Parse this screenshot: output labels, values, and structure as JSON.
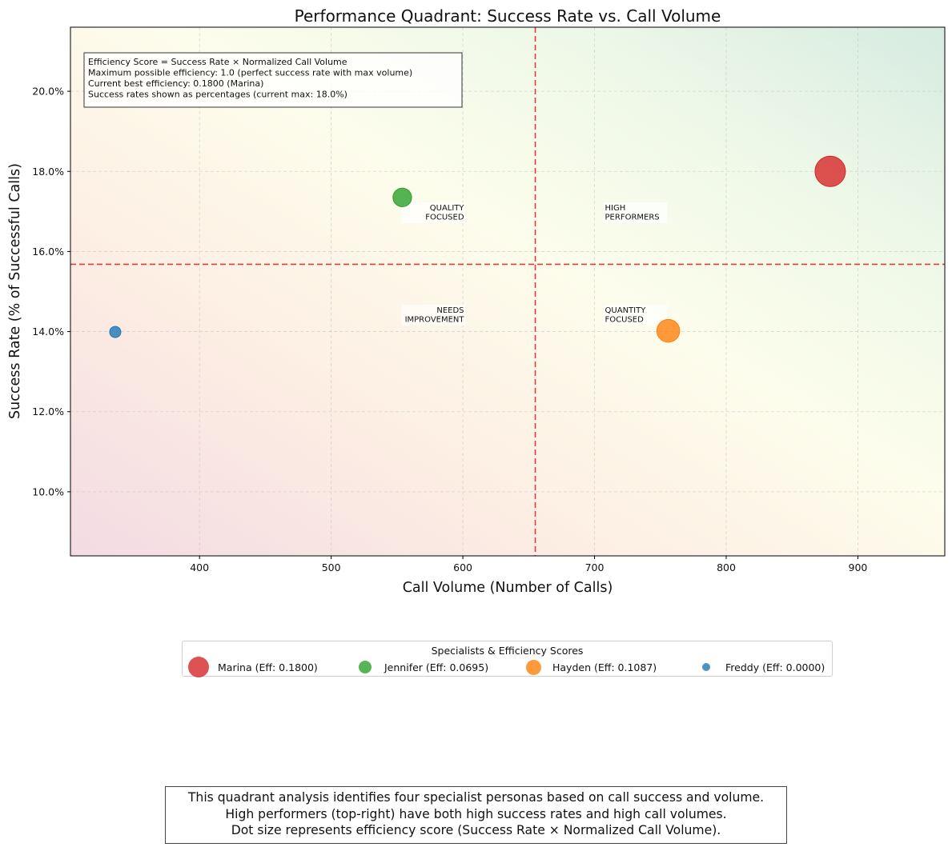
{
  "chart_data": {
    "type": "scatter",
    "title": "Performance Quadrant: Success Rate vs. Call Volume",
    "xlabel": "Call Volume (Number of Calls)",
    "ylabel": "Success Rate (% of Successful Calls)",
    "xlim": [
      302,
      966
    ],
    "ylim": [
      8.4,
      21.6
    ],
    "x_ticks": [
      400,
      500,
      600,
      700,
      800,
      900
    ],
    "y_ticks": [
      10.0,
      12.0,
      14.0,
      16.0,
      18.0,
      20.0
    ],
    "y_tick_format": "percent_1dp",
    "grid": true,
    "threshold_x": 655,
    "threshold_y": 15.68,
    "quadrant_labels": [
      {
        "name": "quality-focused",
        "lines": [
          "QUALITY",
          "FOCUSED"
        ],
        "position": "upper-left"
      },
      {
        "name": "high-performers",
        "lines": [
          "HIGH",
          "PERFORMERS"
        ],
        "position": "upper-right"
      },
      {
        "name": "needs-improvement",
        "lines": [
          "NEEDS",
          "IMPROVEMENT"
        ],
        "position": "lower-left"
      },
      {
        "name": "quantity-focused",
        "lines": [
          "QUANTITY",
          "FOCUSED"
        ],
        "position": "lower-right"
      }
    ],
    "info_box_lines": [
      "Efficiency Score = Success Rate × Normalized Call Volume",
      "Maximum possible efficiency: 1.0 (perfect success rate with max volume)",
      "Current best efficiency: 0.1800 (Marina)",
      "Success rates shown as percentages (current max: 18.0%)"
    ],
    "legend_title": "Specialists & Efficiency Scores",
    "legend_placement": "below-chart",
    "series": [
      {
        "name": "Marina",
        "x": 879,
        "y": 18.0,
        "efficiency": "0.1800",
        "legend_label": "Marina (Eff: 0.1800)",
        "color": "#d62728"
      },
      {
        "name": "Jennifer",
        "x": 554,
        "y": 17.35,
        "efficiency": "0.0695",
        "legend_label": "Jennifer (Eff: 0.0695)",
        "color": "#2ca02c"
      },
      {
        "name": "Hayden",
        "x": 756,
        "y": 14.02,
        "efficiency": "0.1087",
        "legend_label": "Hayden (Eff: 0.1087)",
        "color": "#ff7f0e"
      },
      {
        "name": "Freddy",
        "x": 336,
        "y": 13.99,
        "efficiency": "0.0000",
        "legend_label": "Freddy (Eff: 0.0000)",
        "color": "#1f77b4"
      }
    ]
  },
  "caption_lines": [
    "This quadrant analysis identifies four specialist personas based on call success and volume.",
    "High performers (top-right) have both high success rates and high call volumes.",
    "Dot size represents efficiency score (Success Rate × Normalized Call Volume)."
  ]
}
